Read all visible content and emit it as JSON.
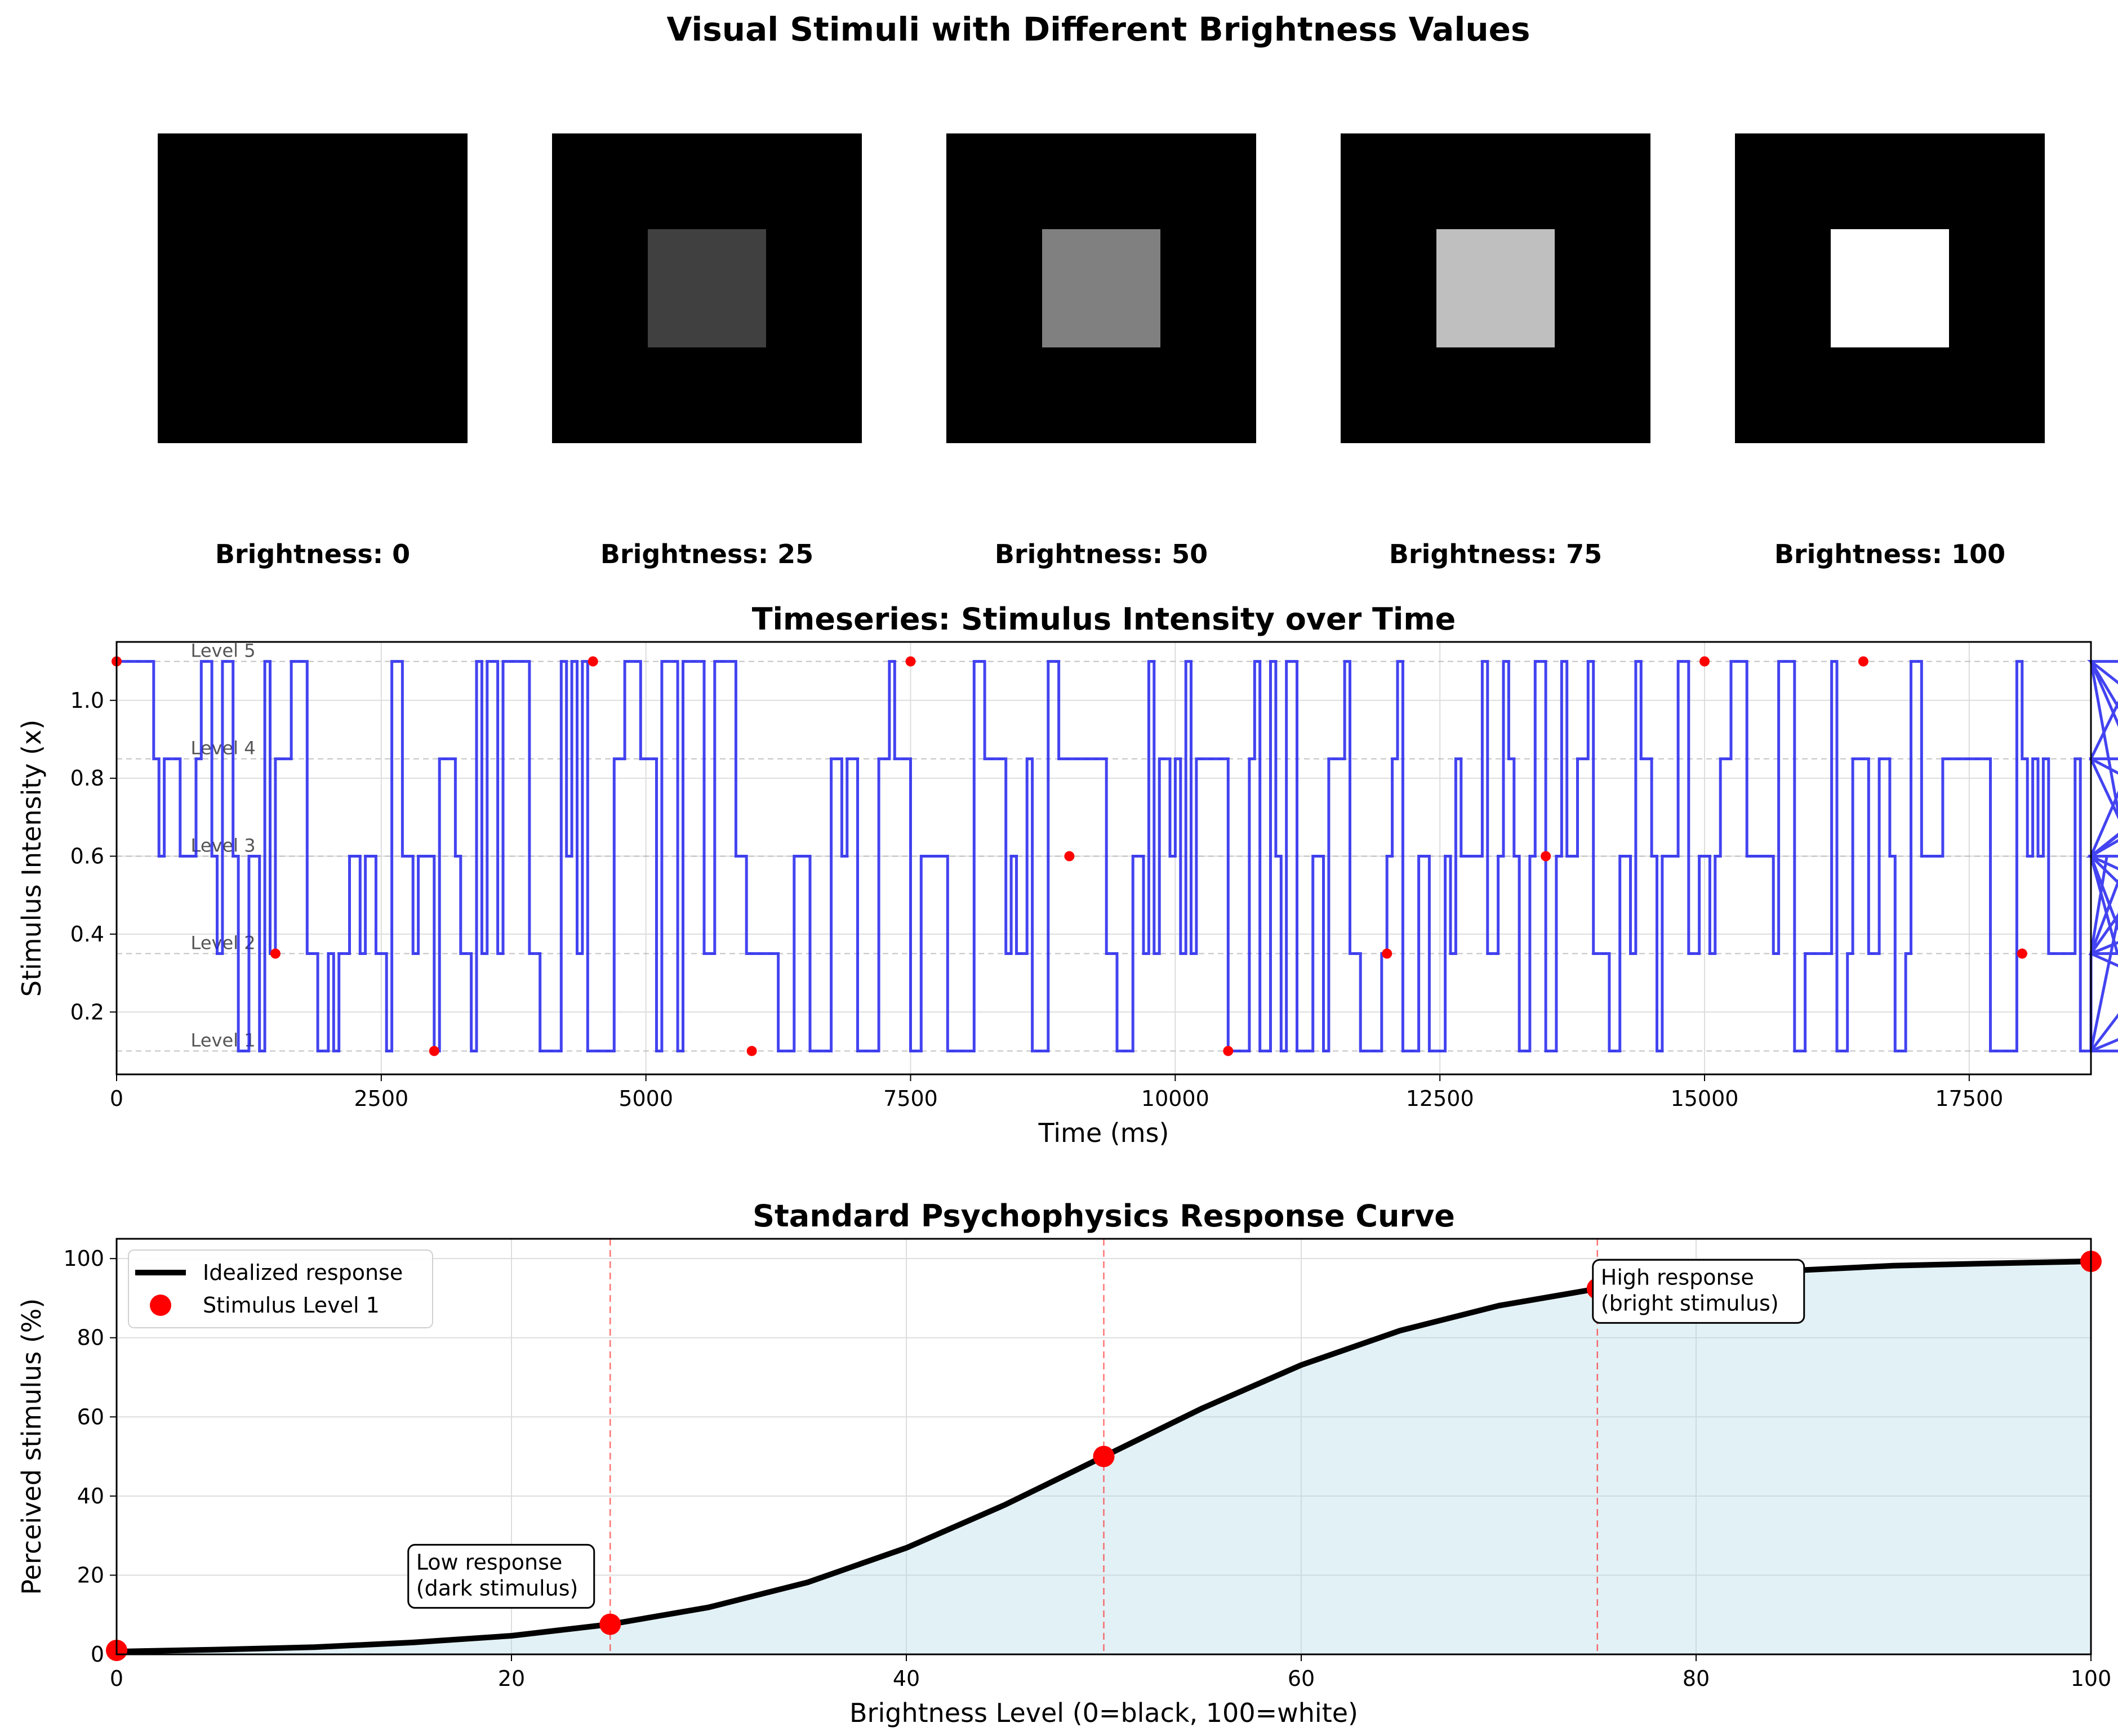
{
  "figure_title": "Visual Stimuli with Different Brightness Values",
  "stimuli": [
    {
      "brightness": 0,
      "label": "Brightness: 0",
      "fill": "#000000"
    },
    {
      "brightness": 25,
      "label": "Brightness: 25",
      "fill": "#404040"
    },
    {
      "brightness": 50,
      "label": "Brightness: 50",
      "fill": "#808080"
    },
    {
      "brightness": 75,
      "label": "Brightness: 75",
      "fill": "#bfbfbf"
    },
    {
      "brightness": 100,
      "label": "Brightness: 100",
      "fill": "#ffffff"
    }
  ],
  "colors": {
    "series_blue": "#2222ee",
    "marker_red": "#ff0000",
    "fill_area": "#add8e6",
    "curve": "#000000",
    "vline": "#ff0000"
  },
  "chart_data": [
    {
      "type": "line",
      "title": "Timeseries: Stimulus Intensity over Time",
      "xlabel": "Time (ms)",
      "ylabel": "Stimulus Intensity (x)",
      "xlim": [
        0,
        18650
      ],
      "ylim": [
        0.04,
        1.15
      ],
      "xticks": [
        0,
        2500,
        5000,
        7500,
        10000,
        12500,
        15000,
        17500
      ],
      "yticks": [
        0.2,
        0.4,
        0.6,
        0.8,
        1.0
      ],
      "grid": true,
      "level_lines": [
        {
          "label": "Level 1",
          "y": 0.1
        },
        {
          "label": "Level 2",
          "y": 0.35
        },
        {
          "label": "Level 3",
          "y": 0.6
        },
        {
          "label": "Level 4",
          "y": 0.85
        },
        {
          "label": "Level 5",
          "y": 1.1
        }
      ],
      "step_width_ms": 50,
      "series": [
        {
          "style": "step",
          "levels": [
            5,
            5,
            5,
            5,
            5,
            5,
            5,
            4,
            3,
            4,
            4,
            4,
            3,
            3,
            3,
            4,
            5,
            5,
            3,
            2,
            5,
            5,
            3,
            1,
            1,
            3,
            3,
            1,
            5,
            2,
            4,
            4,
            4,
            5,
            5,
            5,
            2,
            2,
            1,
            1,
            2,
            1,
            2,
            2,
            3,
            3,
            2,
            3,
            3,
            2,
            2,
            1,
            5,
            5,
            3,
            3,
            2,
            3,
            3,
            3,
            1,
            4,
            4,
            4,
            3,
            2,
            2,
            1,
            5,
            2,
            5,
            5,
            2,
            5,
            5,
            5,
            5,
            5,
            2,
            2,
            1,
            1,
            1,
            1,
            5,
            3,
            5,
            2,
            5,
            1,
            1,
            1,
            1,
            1,
            4,
            4,
            5,
            5,
            5,
            4,
            4,
            4,
            1,
            5,
            5,
            5,
            1,
            5,
            5,
            5,
            5,
            2,
            2,
            5,
            5,
            5,
            5,
            3,
            3,
            2,
            2,
            2,
            2,
            2,
            2,
            1,
            1,
            1,
            3,
            3,
            3,
            1,
            1,
            1,
            1,
            4,
            4,
            3,
            4,
            4,
            1,
            1,
            1,
            1,
            4,
            4,
            5,
            4,
            4,
            4,
            1,
            1,
            3,
            3,
            3,
            3,
            3,
            1,
            1,
            1,
            1,
            1,
            5,
            5,
            4,
            4,
            4,
            4,
            2,
            3,
            2,
            2,
            4,
            1,
            1,
            1,
            5,
            5,
            4,
            4,
            4,
            4,
            4,
            4,
            4,
            4,
            4,
            2,
            2,
            1,
            1,
            1,
            3,
            3,
            2,
            5,
            2,
            4,
            4,
            3,
            4,
            2,
            5,
            2,
            4,
            4,
            4,
            4,
            4,
            4,
            1,
            1,
            1,
            1,
            4,
            5,
            1,
            1,
            5,
            3,
            1,
            5,
            5,
            1,
            1,
            1,
            3,
            3,
            1,
            4,
            4,
            4,
            5,
            2,
            2,
            1,
            1,
            1,
            1,
            2,
            3,
            4,
            5,
            1,
            1,
            1,
            3,
            3,
            1,
            1,
            1,
            3,
            2,
            4,
            3,
            3,
            3,
            3,
            5,
            2,
            2,
            3,
            5,
            4,
            3,
            1,
            1,
            3,
            5,
            5,
            1,
            1,
            3,
            5,
            3,
            3,
            4,
            4,
            5,
            2,
            2,
            2,
            1,
            1,
            3,
            3,
            2,
            5,
            4,
            4,
            3,
            1,
            3,
            3,
            3,
            5,
            5,
            2,
            2,
            3,
            3,
            2,
            3,
            4,
            4,
            5,
            5,
            5,
            3,
            3,
            3,
            3,
            3,
            2,
            5,
            5,
            5,
            1,
            1,
            2,
            2,
            2,
            2,
            2,
            5,
            1,
            1,
            2,
            4,
            4,
            4,
            2,
            2,
            4,
            4,
            3,
            1,
            1,
            2,
            5,
            5,
            3,
            3,
            3,
            3,
            4,
            4,
            4,
            4,
            4,
            4,
            4,
            4,
            4,
            1,
            1,
            1,
            1,
            1,
            5,
            4,
            3,
            4,
            3,
            4,
            2,
            2,
            2,
            2,
            2,
            4,
            1,
            1,
            2,
            2,
            2,
            3,
            3,
            2,
            2,
            3,
            4,
            5,
            2,
            2,
            2,
            3,
            1,
            5,
            3,
            3,
            3,
            2,
            2,
            5,
            3,
            3,
            4,
            4,
            1,
            1,
            3,
            3,
            3,
            3,
            4,
            4,
            4,
            3,
            3,
            3,
            3,
            3,
            2,
            1,
            1,
            1,
            2,
            3,
            5,
            3,
            3
          ],
          "markers": [
            {
              "x": 0,
              "y": 1.1
            },
            {
              "x": 1500,
              "y": 0.35
            },
            {
              "x": 3000,
              "y": 0.1
            },
            {
              "x": 4500,
              "y": 1.1
            },
            {
              "x": 6000,
              "y": 0.1
            },
            {
              "x": 7500,
              "y": 1.1
            },
            {
              "x": 9000,
              "y": 0.6
            },
            {
              "x": 10500,
              "y": 0.1
            },
            {
              "x": 12000,
              "y": 0.35
            },
            {
              "x": 13500,
              "y": 0.6
            },
            {
              "x": 15000,
              "y": 1.1
            },
            {
              "x": 16500,
              "y": 1.1
            },
            {
              "x": 18000,
              "y": 0.35
            }
          ]
        }
      ]
    },
    {
      "type": "line",
      "title": "Standard Psychophysics Response Curve",
      "xlabel": "Brightness Level (0=black, 100=white)",
      "ylabel": "Perceived stimulus (%)",
      "xlim": [
        0,
        100
      ],
      "ylim": [
        0,
        105
      ],
      "xticks": [
        0,
        20,
        40,
        60,
        80,
        100
      ],
      "yticks": [
        0,
        20,
        40,
        60,
        80,
        100
      ],
      "grid": true,
      "legend_position": "top-left",
      "series": [
        {
          "name": "Idealized response",
          "type": "line",
          "x": [
            0,
            5,
            10,
            15,
            20,
            25,
            30,
            35,
            40,
            45,
            50,
            55,
            60,
            65,
            70,
            75,
            80,
            85,
            90,
            95,
            100
          ],
          "y": [
            0.7,
            1.2,
            1.8,
            3.0,
            4.7,
            7.6,
            11.9,
            18.2,
            26.9,
            37.8,
            50.0,
            62.2,
            73.1,
            81.8,
            88.1,
            92.4,
            95.3,
            97.0,
            98.2,
            98.8,
            99.3
          ]
        },
        {
          "name": "Stimulus Level 1",
          "type": "scatter",
          "x": [
            0,
            25,
            50,
            75,
            100
          ],
          "y": [
            1,
            7.6,
            50,
            92.4,
            99.3
          ]
        }
      ],
      "vlines": [
        25,
        50,
        75
      ],
      "annotations": [
        {
          "text_lines": [
            "Low response",
            "(dark stimulus)"
          ],
          "x": 15,
          "y": 20
        },
        {
          "text_lines": [
            "High response",
            "(bright stimulus)"
          ],
          "x": 75,
          "y": 92
        }
      ]
    }
  ]
}
